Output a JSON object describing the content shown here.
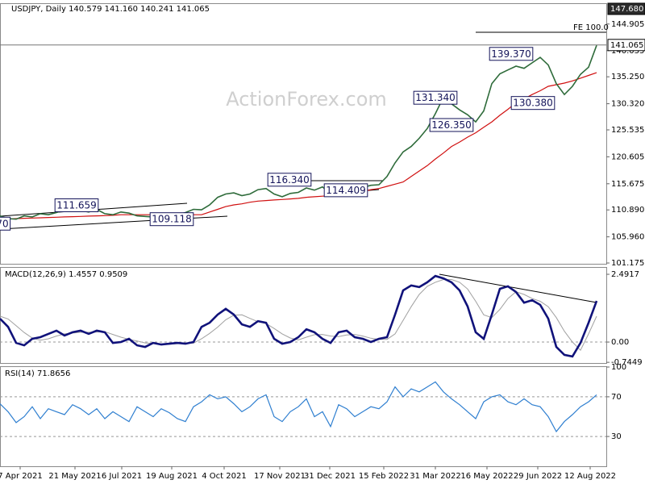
{
  "chart_data": [
    {
      "type": "line",
      "title": "USDJPY, Daily 140.579 141.160 140.241 141.065",
      "watermark": "ActionForex.com",
      "xlim": [
        0,
        75.2
      ],
      "ylim": [
        101.03,
        148.71
      ],
      "yticks": [
        101.175,
        {
          "value": 105.96,
          "label": "105.960"
        },
        {
          "value": 110.89,
          "label": "110.890"
        },
        115.675,
        120.605,
        125.535,
        {
          "value": 130.32,
          "label": "130.320"
        },
        {
          "value": 135.25,
          "label": "135.250"
        },
        140.035,
        144.905
      ],
      "markers": [
        {
          "value": 147.68,
          "label": "147.680"
        },
        {
          "value": 141.065,
          "label": "141.065"
        }
      ],
      "series": [
        {
          "color": "#2e6b3a",
          "values": [
            109.8,
            109.3,
            109.2,
            109.8,
            109.6,
            110.2,
            110.0,
            110.4,
            110.9,
            111.2,
            110.8,
            110.5,
            111.0,
            110.2,
            110.0,
            110.5,
            110.3,
            109.8,
            109.7,
            109.6,
            109.8,
            110.2,
            110.0,
            110.4,
            111.0,
            110.9,
            111.8,
            113.2,
            113.8,
            114.0,
            113.5,
            113.8,
            114.6,
            114.8,
            113.8,
            113.3,
            113.9,
            114.1,
            114.9,
            114.5,
            115.1,
            113.8,
            114.8,
            114.9,
            115.2,
            115.0,
            115.4,
            115.5,
            117.0,
            119.5,
            121.5,
            122.5,
            124.0,
            125.8,
            128.5,
            131.5,
            130.3,
            129.2,
            128.3,
            127.0,
            129.0,
            134.0,
            135.8,
            136.5,
            137.2,
            136.8,
            137.8,
            138.8,
            137.4,
            134.0,
            132.0,
            133.5,
            135.7,
            137.0,
            141.0
          ]
        },
        {
          "color": "#d01010",
          "values": [
            109.2,
            109.25,
            109.3,
            109.35,
            109.4,
            109.45,
            109.5,
            109.55,
            109.6,
            109.65,
            109.7,
            109.75,
            109.8,
            109.85,
            109.9,
            110.0,
            110.0,
            110.0,
            110.0,
            110.0,
            110.0,
            110.0,
            110.0,
            110.0,
            110.0,
            110.0,
            110.5,
            111.0,
            111.5,
            111.8,
            112.0,
            112.3,
            112.5,
            112.6,
            112.7,
            112.8,
            112.9,
            113.0,
            113.2,
            113.3,
            113.4,
            113.5,
            113.6,
            113.8,
            114.0,
            114.3,
            114.6,
            114.8,
            115.2,
            115.6,
            116.0,
            117.0,
            118.0,
            119.0,
            120.2,
            121.3,
            122.5,
            123.3,
            124.2,
            125.0,
            126.0,
            127.0,
            128.2,
            129.3,
            130.5,
            131.2,
            132.0,
            132.7,
            133.5,
            133.8,
            134.1,
            134.5,
            135.0,
            135.5,
            136.0
          ]
        }
      ],
      "annotations": [
        {
          "text": "70",
          "x": 0.3,
          "y": 108.3
        },
        {
          "text": "111.659",
          "x": 9.5,
          "y": 111.659
        },
        {
          "text": "109.118",
          "x": 21.3,
          "y": 109.118
        },
        {
          "text": "116.340",
          "x": 35.9,
          "y": 116.34
        },
        {
          "text": "114.409",
          "x": 42.9,
          "y": 114.409
        },
        {
          "text": "131.340",
          "x": 54.0,
          "y": 131.34
        },
        {
          "text": "126.350",
          "x": 56.0,
          "y": 126.35
        },
        {
          "text": "139.370",
          "x": 63.4,
          "y": 139.37
        },
        {
          "text": "130.380",
          "x": 66.1,
          "y": 130.38
        },
        {
          "text": "FE 100.0",
          "x": 73.3,
          "y": 144.3
        }
      ]
    },
    {
      "type": "macd",
      "title": "MACD(12,26,9) 1.4557 0.9509",
      "xlim": [
        0,
        75.2
      ],
      "ylim": [
        -0.77,
        2.73
      ],
      "yticks": [
        2.4917,
        {
          "value": 0,
          "label": "0.00"
        },
        -0.7449
      ],
      "series": [
        {
          "color": "#10127a",
          "values": [
            0.86,
            0.56,
            -0.03,
            -0.12,
            0.12,
            0.18,
            0.3,
            0.42,
            0.24,
            0.36,
            0.42,
            0.3,
            0.42,
            0.36,
            -0.03,
            0,
            0.12,
            -0.12,
            -0.18,
            -0.03,
            -0.09,
            -0.06,
            -0.03,
            -0.06,
            0,
            0.56,
            0.71,
            1.01,
            1.22,
            1.01,
            0.65,
            0.56,
            0.77,
            0.71,
            0.12,
            -0.06,
            0,
            0.18,
            0.47,
            0.36,
            0.12,
            -0.03,
            0.36,
            0.42,
            0.18,
            0.12,
            0,
            0.12,
            0.18,
            1.01,
            1.9,
            2.08,
            2.02,
            2.2,
            2.43,
            2.34,
            2.2,
            1.9,
            1.31,
            0.36,
            0.12,
            1.01,
            1.96,
            2.05,
            1.84,
            1.45,
            1.54,
            1.37,
            0.86,
            -0.18,
            -0.47,
            -0.53,
            -0.03,
            0.71,
            1.51
          ]
        },
        {
          "color": "#a0a0a0",
          "values": [
            0.95,
            0.85,
            0.6,
            0.35,
            0.15,
            0.07,
            0.12,
            0.22,
            0.3,
            0.33,
            0.36,
            0.36,
            0.37,
            0.38,
            0.28,
            0.18,
            0.1,
            0.04,
            -0.03,
            -0.05,
            -0.08,
            -0.08,
            -0.06,
            -0.05,
            -0.04,
            0.12,
            0.32,
            0.55,
            0.82,
            0.99,
            1.0,
            0.87,
            0.75,
            0.68,
            0.5,
            0.3,
            0.15,
            0.08,
            0.18,
            0.27,
            0.28,
            0.22,
            0.2,
            0.26,
            0.28,
            0.22,
            0.14,
            0.1,
            0.1,
            0.3,
            0.8,
            1.3,
            1.75,
            2.05,
            2.2,
            2.3,
            2.3,
            2.2,
            1.95,
            1.5,
            1.0,
            0.9,
            1.2,
            1.6,
            1.85,
            1.75,
            1.6,
            1.5,
            1.3,
            0.9,
            0.4,
            0.0,
            -0.3,
            0.3,
            0.95
          ]
        }
      ]
    },
    {
      "type": "rsi",
      "title": "RSI(14) 71.8656",
      "xlim": [
        0,
        75.2
      ],
      "ylim": [
        0,
        100
      ],
      "yticks": [
        100,
        70,
        30
      ],
      "xticks": [
        {
          "value": 2.5,
          "label": "7 Apr 2021"
        },
        {
          "value": 9.3,
          "label": "21 May 2021"
        },
        {
          "value": 15.1,
          "label": "6 Jul 2021"
        },
        {
          "value": 21.3,
          "label": "19 Aug 2021"
        },
        {
          "value": 27.8,
          "label": "4 Oct 2021"
        },
        {
          "value": 34.7,
          "label": "17 Nov 2021"
        },
        {
          "value": 40.9,
          "label": "31 Dec 2021"
        },
        {
          "value": 47.6,
          "label": "15 Feb 2022"
        },
        {
          "value": 54.0,
          "label": "31 Mar 2022"
        },
        {
          "value": 60.4,
          "label": "16 May 2022"
        },
        {
          "value": 66.7,
          "label": "29 Jun 2022"
        },
        {
          "value": 73.2,
          "label": "12 Aug 2022"
        }
      ],
      "series": [
        {
          "color": "#2f7fd0",
          "values": [
            63,
            55,
            44,
            50,
            60,
            48,
            58,
            55,
            52,
            62,
            58,
            52,
            58,
            48,
            55,
            50,
            45,
            60,
            55,
            50,
            58,
            54,
            48,
            45,
            60,
            65,
            72,
            68,
            70,
            63,
            55,
            60,
            68,
            72,
            50,
            45,
            55,
            60,
            68,
            50,
            55,
            40,
            62,
            58,
            50,
            55,
            60,
            58,
            65,
            80,
            70,
            78,
            75,
            80,
            85,
            75,
            68,
            62,
            55,
            48,
            65,
            70,
            72,
            65,
            62,
            68,
            62,
            60,
            50,
            35,
            45,
            52,
            60,
            65,
            72
          ]
        }
      ]
    }
  ]
}
